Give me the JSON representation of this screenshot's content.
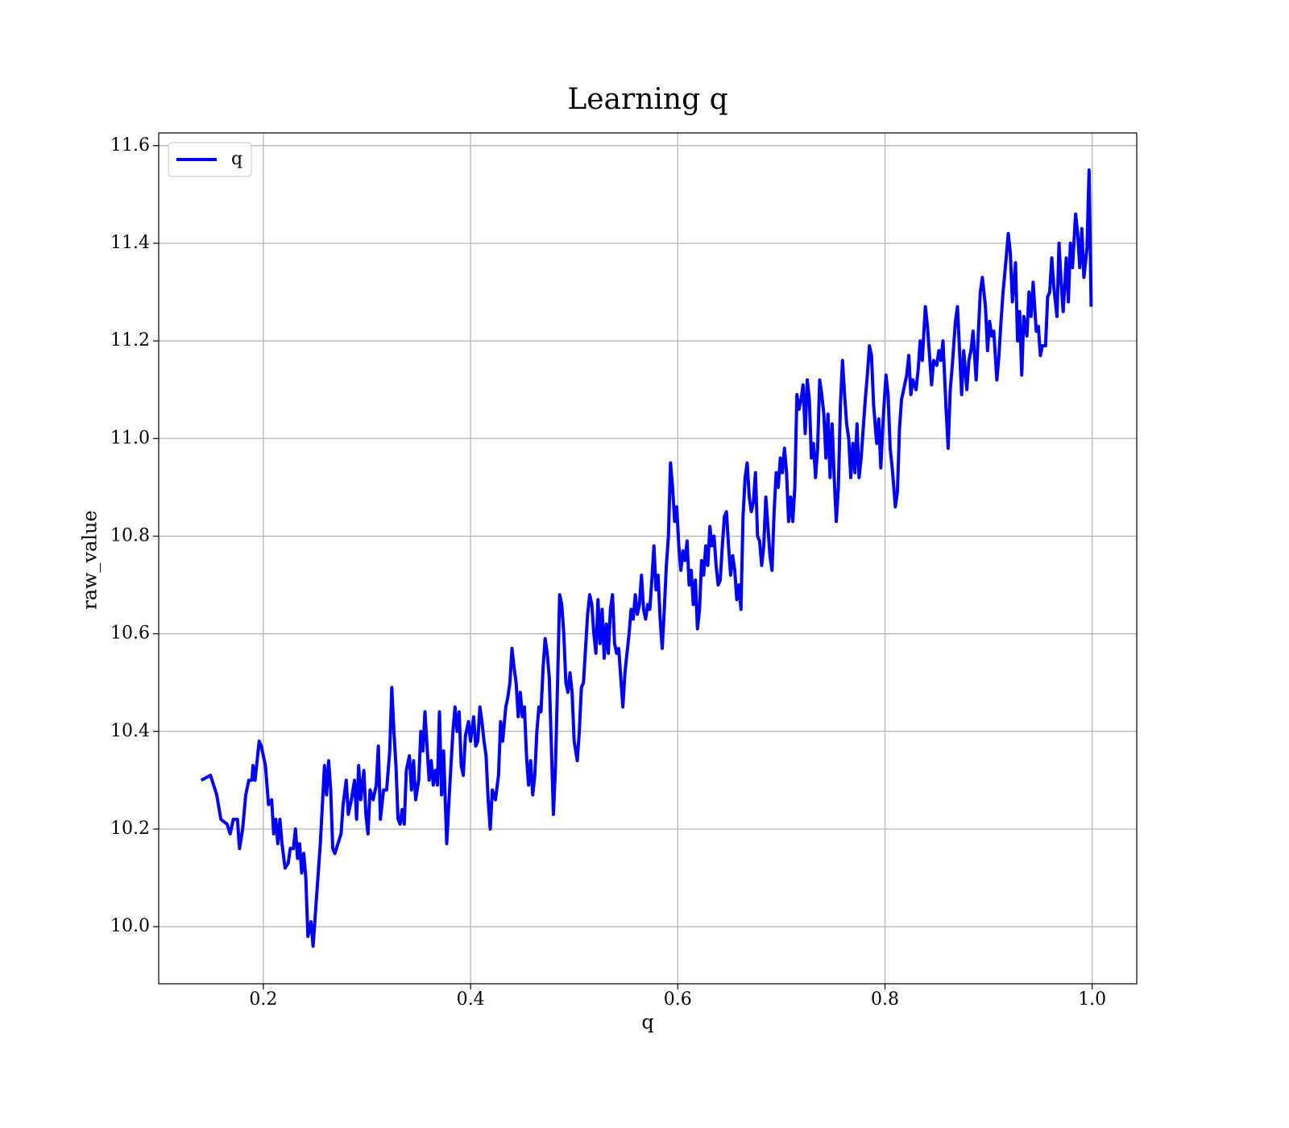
{
  "chart_data": {
    "type": "line",
    "title": "Learning q",
    "x_label": "q",
    "y_label": "raw_value",
    "xlim": [
      0.099,
      1.043
    ],
    "ylim": [
      9.883,
      11.626
    ],
    "xticks": [
      0.2,
      0.4,
      0.6,
      0.8,
      {
        "value": 1.0,
        "label": "1.0"
      }
    ],
    "yticks": [
      {
        "value": 10.0,
        "label": "10.0"
      },
      10.2,
      10.4,
      10.6,
      10.8,
      {
        "value": 11.0,
        "label": "11.0"
      },
      11.2,
      11.4,
      11.6
    ],
    "grid": true,
    "legend": "upper left",
    "x": [
      0.14,
      0.149,
      0.155,
      0.159,
      0.165,
      0.168,
      0.171,
      0.175,
      0.177,
      0.18,
      0.183,
      0.186,
      0.189,
      0.19,
      0.192,
      0.196,
      0.198,
      0.202,
      0.205,
      0.208,
      0.21,
      0.212,
      0.214,
      0.216,
      0.218,
      0.221,
      0.224,
      0.226,
      0.229,
      0.231,
      0.233,
      0.235,
      0.237,
      0.239,
      0.241,
      0.243,
      0.246,
      0.248,
      0.25,
      0.252,
      0.255,
      0.259,
      0.261,
      0.263,
      0.265,
      0.267,
      0.269,
      0.272,
      0.275,
      0.277,
      0.28,
      0.282,
      0.285,
      0.288,
      0.29,
      0.292,
      0.294,
      0.297,
      0.299,
      0.301,
      0.303,
      0.306,
      0.309,
      0.311,
      0.313,
      0.316,
      0.319,
      0.322,
      0.324,
      0.326,
      0.328,
      0.33,
      0.332,
      0.334,
      0.336,
      0.338,
      0.341,
      0.343,
      0.345,
      0.347,
      0.35,
      0.352,
      0.354,
      0.356,
      0.358,
      0.36,
      0.362,
      0.364,
      0.366,
      0.368,
      0.37,
      0.372,
      0.374,
      0.377,
      0.38,
      0.383,
      0.385,
      0.387,
      0.389,
      0.391,
      0.393,
      0.395,
      0.398,
      0.4,
      0.403,
      0.405,
      0.407,
      0.409,
      0.411,
      0.413,
      0.415,
      0.417,
      0.419,
      0.421,
      0.424,
      0.427,
      0.429,
      0.431,
      0.434,
      0.436,
      0.438,
      0.44,
      0.442,
      0.444,
      0.446,
      0.448,
      0.45,
      0.452,
      0.454,
      0.456,
      0.458,
      0.46,
      0.462,
      0.464,
      0.466,
      0.468,
      0.47,
      0.472,
      0.474,
      0.476,
      0.478,
      0.48,
      0.482,
      0.484,
      0.486,
      0.488,
      0.49,
      0.492,
      0.494,
      0.496,
      0.498,
      0.5,
      0.503,
      0.505,
      0.507,
      0.509,
      0.511,
      0.513,
      0.515,
      0.517,
      0.519,
      0.521,
      0.523,
      0.525,
      0.527,
      0.529,
      0.531,
      0.533,
      0.535,
      0.537,
      0.539,
      0.541,
      0.543,
      0.545,
      0.547,
      0.549,
      0.551,
      0.553,
      0.555,
      0.557,
      0.559,
      0.561,
      0.563,
      0.565,
      0.567,
      0.569,
      0.571,
      0.573,
      0.575,
      0.577,
      0.579,
      0.581,
      0.583,
      0.585,
      0.587,
      0.589,
      0.591,
      0.593,
      0.595,
      0.597,
      0.599,
      0.601,
      0.603,
      0.605,
      0.607,
      0.609,
      0.611,
      0.613,
      0.615,
      0.617,
      0.619,
      0.621,
      0.623,
      0.625,
      0.627,
      0.629,
      0.631,
      0.633,
      0.635,
      0.637,
      0.639,
      0.641,
      0.643,
      0.645,
      0.647,
      0.649,
      0.651,
      0.653,
      0.655,
      0.657,
      0.659,
      0.661,
      0.663,
      0.665,
      0.667,
      0.669,
      0.671,
      0.673,
      0.675,
      0.677,
      0.679,
      0.681,
      0.683,
      0.685,
      0.687,
      0.689,
      0.691,
      0.693,
      0.695,
      0.697,
      0.699,
      0.701,
      0.703,
      0.705,
      0.707,
      0.709,
      0.711,
      0.713,
      0.715,
      0.717,
      0.719,
      0.721,
      0.723,
      0.725,
      0.727,
      0.729,
      0.731,
      0.733,
      0.735,
      0.737,
      0.739,
      0.741,
      0.743,
      0.745,
      0.747,
      0.749,
      0.751,
      0.753,
      0.755,
      0.757,
      0.759,
      0.761,
      0.763,
      0.765,
      0.767,
      0.769,
      0.771,
      0.773,
      0.775,
      0.777,
      0.779,
      0.781,
      0.783,
      0.785,
      0.787,
      0.789,
      0.792,
      0.794,
      0.796,
      0.798,
      0.801,
      0.803,
      0.805,
      0.807,
      0.81,
      0.812,
      0.814,
      0.816,
      0.818,
      0.821,
      0.823,
      0.825,
      0.827,
      0.83,
      0.832,
      0.834,
      0.836,
      0.839,
      0.841,
      0.843,
      0.845,
      0.847,
      0.85,
      0.852,
      0.854,
      0.856,
      0.859,
      0.861,
      0.863,
      0.865,
      0.868,
      0.87,
      0.872,
      0.874,
      0.876,
      0.879,
      0.881,
      0.883,
      0.885,
      0.888,
      0.89,
      0.892,
      0.894,
      0.897,
      0.899,
      0.901,
      0.903,
      0.905,
      0.908,
      0.91,
      0.912,
      0.914,
      0.917,
      0.919,
      0.921,
      0.923,
      0.926,
      0.928,
      0.93,
      0.932,
      0.934,
      0.937,
      0.939,
      0.941,
      0.943,
      0.946,
      0.948,
      0.95,
      0.952,
      0.955,
      0.957,
      0.959,
      0.961,
      0.963,
      0.966,
      0.968,
      0.97,
      0.972,
      0.975,
      0.977,
      0.979,
      0.981,
      0.984,
      0.986,
      0.988,
      0.99,
      0.992,
      0.995,
      0.997,
      0.999
    ],
    "series": [
      {
        "name": "q",
        "color": "#0000ff",
        "values": [
          10.3,
          10.31,
          10.27,
          10.22,
          10.21,
          10.19,
          10.22,
          10.22,
          10.16,
          10.2,
          10.27,
          10.3,
          10.3,
          10.33,
          10.3,
          10.38,
          10.37,
          10.33,
          10.25,
          10.26,
          10.19,
          10.22,
          10.17,
          10.22,
          10.17,
          10.12,
          10.13,
          10.16,
          10.16,
          10.2,
          10.14,
          10.17,
          10.11,
          10.15,
          10.1,
          9.98,
          10.01,
          9.96,
          10.02,
          10.08,
          10.17,
          10.33,
          10.27,
          10.34,
          10.28,
          10.16,
          10.15,
          10.17,
          10.19,
          10.25,
          10.3,
          10.23,
          10.26,
          10.3,
          10.22,
          10.33,
          10.26,
          10.32,
          10.23,
          10.19,
          10.28,
          10.26,
          10.29,
          10.37,
          10.22,
          10.28,
          10.28,
          10.36,
          10.49,
          10.4,
          10.33,
          10.22,
          10.21,
          10.24,
          10.21,
          10.32,
          10.35,
          10.28,
          10.34,
          10.26,
          10.3,
          10.4,
          10.36,
          10.44,
          10.37,
          10.3,
          10.34,
          10.29,
          10.32,
          10.29,
          10.44,
          10.27,
          10.36,
          10.17,
          10.29,
          10.4,
          10.45,
          10.4,
          10.44,
          10.33,
          10.31,
          10.39,
          10.42,
          10.38,
          10.43,
          10.37,
          10.38,
          10.45,
          10.42,
          10.38,
          10.35,
          10.26,
          10.2,
          10.28,
          10.26,
          10.31,
          10.42,
          10.38,
          10.45,
          10.47,
          10.5,
          10.57,
          10.53,
          10.5,
          10.43,
          10.48,
          10.43,
          10.45,
          10.35,
          10.29,
          10.34,
          10.27,
          10.31,
          10.4,
          10.45,
          10.44,
          10.53,
          10.59,
          10.56,
          10.51,
          10.37,
          10.23,
          10.33,
          10.5,
          10.68,
          10.66,
          10.6,
          10.5,
          10.48,
          10.52,
          10.48,
          10.38,
          10.34,
          10.4,
          10.49,
          10.5,
          10.57,
          10.64,
          10.68,
          10.66,
          10.6,
          10.56,
          10.67,
          10.58,
          10.65,
          10.55,
          10.62,
          10.56,
          10.65,
          10.68,
          10.58,
          10.56,
          10.57,
          10.51,
          10.45,
          10.52,
          10.56,
          10.6,
          10.65,
          10.63,
          10.68,
          10.64,
          10.66,
          10.72,
          10.65,
          10.63,
          10.66,
          10.65,
          10.71,
          10.78,
          10.69,
          10.72,
          10.63,
          10.57,
          10.65,
          10.74,
          10.8,
          10.95,
          10.9,
          10.83,
          10.86,
          10.78,
          10.73,
          10.77,
          10.75,
          10.79,
          10.7,
          10.73,
          10.66,
          10.71,
          10.61,
          10.65,
          10.75,
          10.72,
          10.78,
          10.74,
          10.82,
          10.78,
          10.8,
          10.74,
          10.7,
          10.71,
          10.78,
          10.84,
          10.85,
          10.78,
          10.72,
          10.76,
          10.73,
          10.67,
          10.7,
          10.65,
          10.84,
          10.92,
          10.95,
          10.88,
          10.85,
          10.87,
          10.93,
          10.8,
          10.79,
          10.74,
          10.78,
          10.88,
          10.82,
          10.76,
          10.73,
          10.85,
          10.93,
          10.9,
          10.96,
          10.93,
          10.98,
          10.93,
          10.83,
          10.88,
          10.83,
          10.9,
          11.09,
          11.06,
          11.08,
          11.11,
          11.01,
          11.12,
          11.08,
          10.96,
          10.99,
          10.92,
          10.98,
          11.12,
          11.09,
          11.05,
          10.96,
          11.05,
          10.92,
          11.03,
          10.92,
          10.83,
          10.9,
          11.07,
          11.16,
          11.09,
          11.03,
          11.0,
          10.92,
          10.99,
          10.93,
          11.03,
          10.92,
          10.96,
          11.02,
          11.08,
          11.13,
          11.19,
          11.17,
          11.07,
          10.99,
          11.04,
          10.94,
          11.03,
          11.13,
          11.09,
          10.98,
          10.94,
          10.86,
          10.89,
          11.02,
          11.08,
          11.1,
          11.13,
          11.17,
          11.09,
          11.12,
          11.1,
          11.14,
          11.2,
          11.16,
          11.27,
          11.23,
          11.17,
          11.11,
          11.16,
          11.15,
          11.18,
          11.16,
          11.2,
          11.06,
          10.98,
          11.1,
          11.15,
          11.24,
          11.27,
          11.18,
          11.09,
          11.18,
          11.1,
          11.16,
          11.18,
          11.22,
          11.12,
          11.21,
          11.3,
          11.33,
          11.27,
          11.18,
          11.24,
          11.21,
          11.22,
          11.12,
          11.17,
          11.24,
          11.3,
          11.37,
          11.42,
          11.38,
          11.28,
          11.36,
          11.2,
          11.26,
          11.13,
          11.25,
          11.21,
          11.3,
          11.25,
          11.32,
          11.22,
          11.23,
          11.17,
          11.19,
          11.19,
          11.29,
          11.3,
          11.37,
          11.31,
          11.25,
          11.4,
          11.32,
          11.26,
          11.37,
          11.28,
          11.4,
          11.35,
          11.46,
          11.42,
          11.35,
          11.43,
          11.33,
          11.39,
          11.55,
          11.27
        ]
      }
    ]
  }
}
